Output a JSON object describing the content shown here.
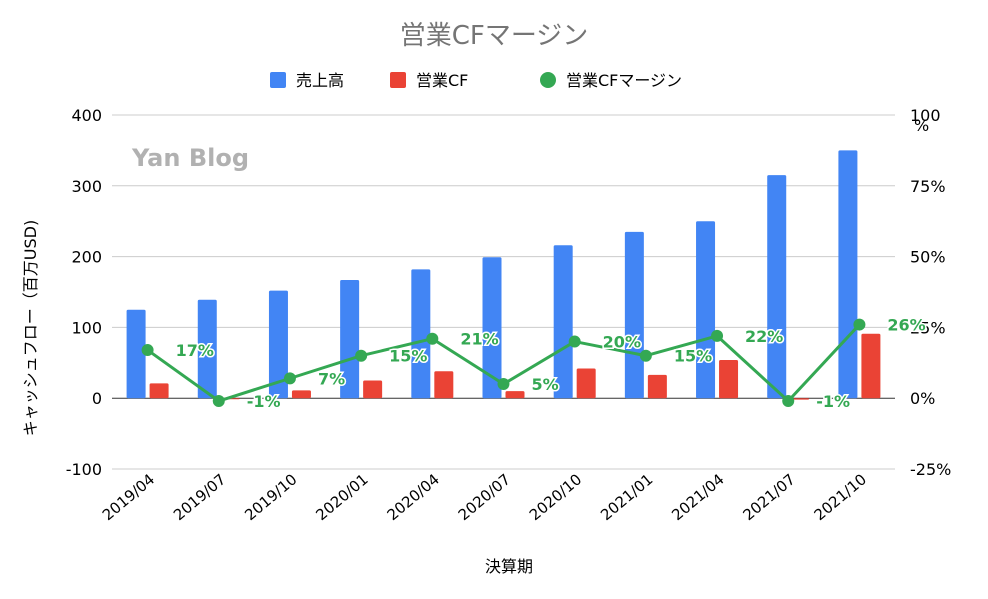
{
  "chart_data": {
    "type": "bar",
    "title": "営業CFマージン",
    "xlabel": "決算期",
    "ylabel": "キャッシュフロー（百万USD)",
    "y2label": "%",
    "watermark": "Yan Blog",
    "categories": [
      "2019/04",
      "2019/07",
      "2019/10",
      "2020/01",
      "2020/04",
      "2020/07",
      "2020/10",
      "2021/01",
      "2021/04",
      "2021/07",
      "2021/10"
    ],
    "ylim": [
      -100,
      400
    ],
    "yticks": [
      "-100",
      "0",
      "100",
      "200",
      "300",
      "400"
    ],
    "y2lim": [
      -25,
      100
    ],
    "y2ticks": [
      "-25%",
      "0%",
      "25%",
      "50%",
      "75%",
      "100"
    ],
    "legend_position": "top",
    "grid": true,
    "series": [
      {
        "name": "売上高",
        "type": "bar",
        "axis": "left",
        "color": "#4285f4",
        "values": [
          125,
          139,
          152,
          167,
          182,
          199,
          216,
          235,
          250,
          315,
          350
        ]
      },
      {
        "name": "営業CF",
        "type": "bar",
        "axis": "left",
        "color": "#ea4335",
        "values": [
          21,
          -1,
          11,
          25,
          38,
          10,
          42,
          33,
          54,
          -2,
          91
        ]
      },
      {
        "name": "営業CFマージン",
        "type": "line",
        "axis": "right",
        "color": "#34a853",
        "values": [
          17,
          -1,
          7,
          15,
          21,
          5,
          20,
          15,
          22,
          -1,
          26
        ],
        "labels": [
          "17%",
          "-1%",
          "7%",
          "15%",
          "21%",
          "5%",
          "20%",
          "15%",
          "22%",
          "-1%",
          "26%"
        ]
      }
    ]
  }
}
